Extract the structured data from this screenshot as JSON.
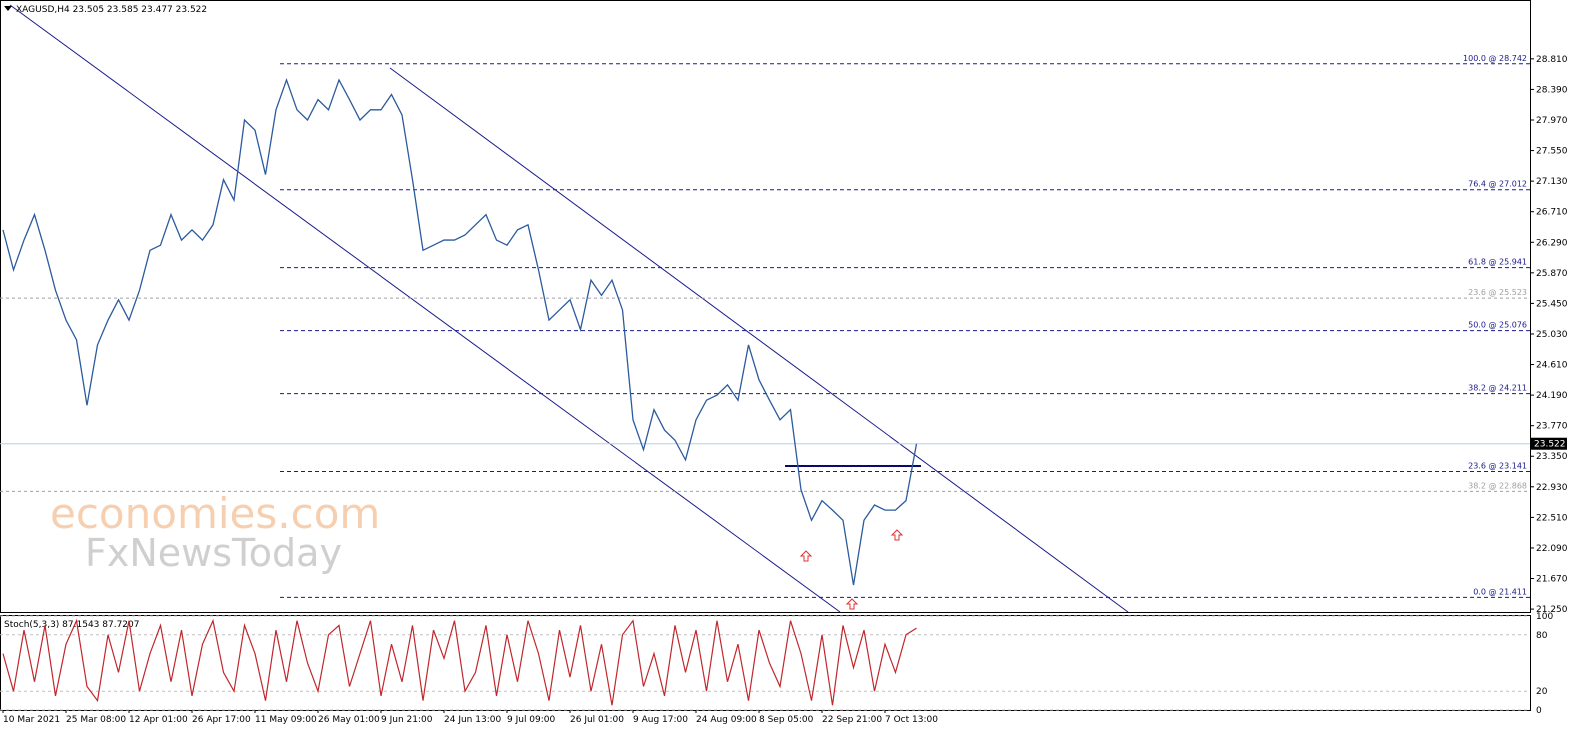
{
  "chart_data": {
    "type": "line",
    "title": "XAGUSD,H4 23.505 23.585 23.477 23.522",
    "watermark": [
      "economies.com",
      "FxNewsToday"
    ],
    "categories": [
      "10 Mar 2021",
      null,
      null,
      null,
      null,
      null,
      "25 Mar 08:00",
      null,
      null,
      null,
      null,
      null,
      "12 Apr 01:00",
      null,
      null,
      null,
      null,
      null,
      "26 Apr 17:00",
      null,
      null,
      null,
      null,
      null,
      "11 May 09:00",
      null,
      null,
      null,
      null,
      null,
      "26 May 01:00",
      null,
      null,
      null,
      null,
      null,
      "9 Jun 21:00",
      null,
      null,
      null,
      null,
      null,
      "24 Jun 13:00",
      null,
      null,
      null,
      null,
      null,
      "9 Jul 09:00",
      null,
      null,
      null,
      null,
      null,
      "26 Jul 01:00",
      null,
      null,
      null,
      null,
      null,
      "9 Aug 17:00",
      null,
      null,
      null,
      null,
      null,
      "24 Aug 09:00",
      null,
      null,
      null,
      null,
      null,
      "8 Sep 05:00",
      null,
      null,
      null,
      null,
      null,
      "22 Sep 21:00",
      null,
      null,
      null,
      null,
      null,
      "7 Oct 13:00",
      null,
      null,
      null
    ],
    "series": [
      {
        "color": "#2b5a9e",
        "values": [
          26.46,
          25.91,
          26.32,
          26.67,
          26.18,
          25.63,
          25.22,
          24.95,
          24.05,
          24.88,
          25.22,
          25.5,
          25.22,
          25.63,
          26.18,
          26.25,
          26.67,
          26.32,
          26.46,
          26.32,
          26.53,
          27.15,
          26.87,
          27.97,
          27.83,
          27.22,
          28.11,
          28.52,
          28.11,
          27.97,
          28.25,
          28.11,
          28.52,
          28.25,
          27.97,
          28.11,
          28.11,
          28.32,
          28.04,
          27.15,
          26.18,
          26.25,
          26.32,
          26.32,
          26.39,
          26.53,
          26.67,
          26.32,
          26.25,
          26.46,
          26.53,
          25.91,
          25.22,
          25.36,
          25.5,
          25.09,
          25.77,
          25.56,
          25.77,
          25.36,
          23.85,
          23.44,
          23.99,
          23.71,
          23.57,
          23.3,
          23.85,
          24.12,
          24.19,
          24.33,
          24.12,
          24.88,
          24.4,
          24.12,
          23.85,
          23.99,
          22.89,
          22.47,
          22.74,
          22.61,
          22.47,
          21.58,
          22.47,
          22.68,
          22.61,
          22.61,
          22.74,
          23.52
        ]
      }
    ],
    "ylim": [
      21.21,
      29.55
    ],
    "yticks": [
      {
        "value": 21.25,
        "label": "21.250"
      },
      {
        "value": 21.67,
        "label": "21.670"
      },
      {
        "value": 22.09,
        "label": "22.090"
      },
      {
        "value": 22.51,
        "label": "22.510"
      },
      {
        "value": 22.93,
        "label": "22.930"
      },
      {
        "value": 23.35,
        "label": "23.350"
      },
      {
        "value": 23.77,
        "label": "23.770"
      },
      {
        "value": 24.19,
        "label": "24.190"
      },
      {
        "value": 24.61,
        "label": "24.610"
      },
      {
        "value": 25.03,
        "label": "25.030"
      },
      {
        "value": 25.45,
        "label": "25.450"
      },
      {
        "value": 25.87,
        "label": "25.870"
      },
      {
        "value": 26.29,
        "label": "26.290"
      },
      {
        "value": 26.71,
        "label": "26.710"
      },
      {
        "value": 27.13,
        "label": "27.130"
      },
      {
        "value": 27.55,
        "label": "27.550"
      },
      {
        "value": 27.97,
        "label": "27.970"
      },
      {
        "value": 28.39,
        "label": "28.390"
      },
      {
        "value": 28.81,
        "label": "28.810"
      }
    ],
    "last_price": {
      "value": 23.522,
      "label": "23.522"
    },
    "fib_levels": [
      {
        "label": "100.0 @ 28.742",
        "value": 28.742,
        "color": "#1a1a8c"
      },
      {
        "label": "76.4 @ 27.012",
        "value": 27.012,
        "color": "#1a1a8c"
      },
      {
        "label": "61.8 @ 25.941",
        "value": 25.941,
        "color": "#1a1a8c"
      },
      {
        "label": "23.6 @ 25.523",
        "value": 25.523,
        "color": "#a0a0a0"
      },
      {
        "label": "50.0 @ 25.076",
        "value": 25.076,
        "color": "#1a1a8c"
      },
      {
        "label": "38.2 @ 24.211",
        "value": 24.211,
        "color": "#1a1a8c"
      },
      {
        "label": "23.6 @ 23.141",
        "value": 23.141,
        "color": "#1a1a8c"
      },
      {
        "label": "38.2 @ 22.868",
        "value": 22.868,
        "color": "#a0a0a0"
      },
      {
        "label": "0.0 @ 21.411",
        "value": 21.411,
        "color": "#1a1a8c"
      }
    ],
    "stoch": {
      "title": "Stoch(5,3,3) 87.1543 87.7207",
      "color": "#c0272d",
      "ylim": [
        0,
        100
      ],
      "yticks": [
        0,
        20,
        80,
        100
      ],
      "values": [
        60,
        20,
        85,
        30,
        90,
        15,
        70,
        95,
        25,
        10,
        80,
        40,
        95,
        20,
        60,
        90,
        30,
        85,
        15,
        70,
        95,
        40,
        20,
        90,
        60,
        10,
        85,
        30,
        95,
        50,
        20,
        80,
        90,
        25,
        60,
        95,
        15,
        70,
        30,
        90,
        10,
        85,
        55,
        95,
        20,
        40,
        90,
        15,
        80,
        30,
        95,
        60,
        10,
        85,
        35,
        90,
        20,
        70,
        5,
        80,
        95,
        25,
        60,
        15,
        90,
        40,
        85,
        20,
        95,
        30,
        70,
        10,
        85,
        50,
        25,
        95,
        60,
        10,
        80,
        5,
        90,
        45,
        85,
        20,
        70,
        40,
        80,
        87.15
      ]
    }
  }
}
